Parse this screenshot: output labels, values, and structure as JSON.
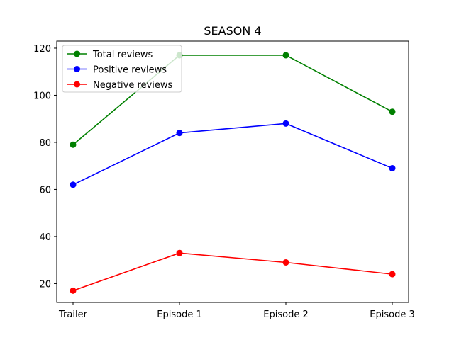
{
  "chart_data": {
    "type": "line",
    "title": "SEASON 4",
    "xlabel": "",
    "ylabel": "",
    "categories": [
      "Trailer",
      "Episode 1",
      "Episode 2",
      "Episode 3"
    ],
    "ylim": [
      12,
      123
    ],
    "yticks": [
      20,
      40,
      60,
      80,
      100,
      120
    ],
    "grid": false,
    "legend_position": "top-left",
    "series": [
      {
        "name": "Total reviews",
        "color": "#008000",
        "values": [
          79,
          117,
          117,
          93
        ]
      },
      {
        "name": "Positive reviews",
        "color": "#0000ff",
        "values": [
          62,
          84,
          88,
          69
        ]
      },
      {
        "name": "Negative reviews",
        "color": "#ff0000",
        "values": [
          17,
          33,
          29,
          24
        ]
      }
    ]
  }
}
